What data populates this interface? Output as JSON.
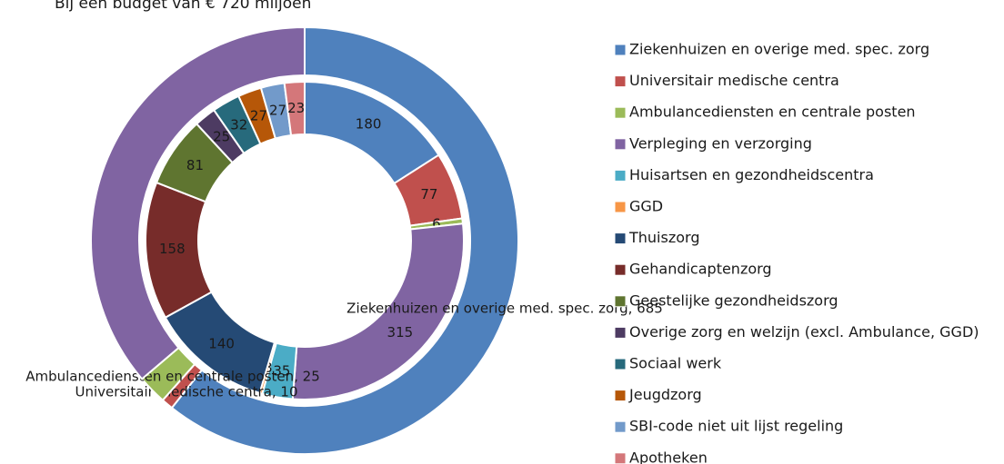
{
  "chart_data": {
    "type": "donut",
    "title": "Bij een budget van € 720 miljoen",
    "categories": [
      "Ziekenhuizen en overige med. spec. zorg",
      "Universitair medische centra",
      "Ambulancediensten en centrale posten",
      "Verpleging en verzorging",
      "Huisartsen en gezondheidscentra",
      "GGD",
      "Thuiszorg",
      "Gehandicaptenzorg",
      "Geestelijke gezondheidszorg",
      "Overige zorg en welzijn (excl. Ambulance, GGD)",
      "Sociaal werk",
      "Jeugdzorg",
      "SBI-code niet uit lijst regeling",
      "Apotheken"
    ],
    "colors": [
      "#4f81bd",
      "#c0504d",
      "#9bbb59",
      "#8064a2",
      "#4bacc6",
      "#f79646",
      "#254a75",
      "#772c2a",
      "#5f7530",
      "#4d3b62",
      "#276a7c",
      "#b65708",
      "#729aca",
      "#d4777a"
    ],
    "series": [
      {
        "values": [
          180,
          77,
          6,
          315,
          35,
          3,
          140,
          158,
          81,
          25,
          32,
          27,
          27,
          23
        ]
      },
      {
        "values": [
          685,
          10,
          25,
          409,
          null,
          null,
          null,
          null,
          null,
          null,
          null,
          null,
          null,
          null
        ],
        "value_labels": [
          "Ziekenhuizen en overige med. spec. zorg, 685",
          "Universitair medische centra, 10",
          "Ambulancediensten en centrale posten, 25",
          null,
          null,
          null,
          null,
          null,
          null,
          null,
          null,
          null,
          null,
          null
        ]
      }
    ],
    "legend": "right"
  }
}
